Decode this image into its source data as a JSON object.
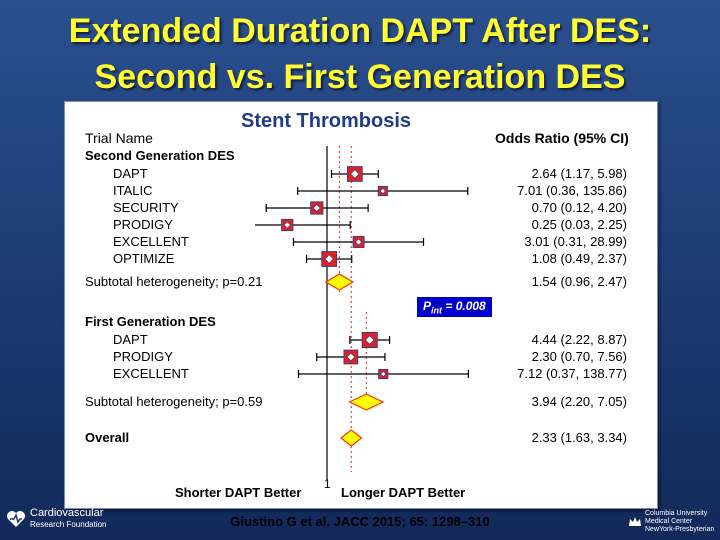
{
  "slide": {
    "title_line1": "Extended Duration DAPT After DES:",
    "title_line2": "Second vs. First Generation DES"
  },
  "panel": {
    "header_left": "Trial Name",
    "header_center": "Stent Thrombosis",
    "header_right": "Odds Ratio (95% CI)"
  },
  "chart_data": {
    "type": "forest",
    "xscale": "log",
    "reference_line": 1,
    "axis_tick_label": "1",
    "left_label": "Shorter DAPT Better",
    "right_label": "Longer DAPT Better",
    "p_interaction_prefix": "P",
    "p_interaction_sub": "int",
    "p_interaction_value": " = 0.008",
    "rows": [
      {
        "label": "Second Generation DES",
        "kind": "group"
      },
      {
        "label": "DAPT",
        "kind": "study",
        "or": 2.64,
        "lo": 1.17,
        "hi": 5.98,
        "text": "2.64 (1.17, 5.98)"
      },
      {
        "label": "ITALIC",
        "kind": "study",
        "or": 7.01,
        "lo": 0.36,
        "hi": 135.86,
        "text": "7.01 (0.36, 135.86)"
      },
      {
        "label": "SECURITY",
        "kind": "study",
        "or": 0.7,
        "lo": 0.12,
        "hi": 4.2,
        "text": "0.70 (0.12, 4.20)"
      },
      {
        "label": "PRODIGY",
        "kind": "study",
        "or": 0.25,
        "lo": 0.03,
        "hi": 2.25,
        "text": "0.25 (0.03, 2.25)"
      },
      {
        "label": "EXCELLENT",
        "kind": "study",
        "or": 3.01,
        "lo": 0.31,
        "hi": 28.99,
        "text": "3.01 (0.31, 28.99)"
      },
      {
        "label": "OPTIMIZE",
        "kind": "study",
        "or": 1.08,
        "lo": 0.49,
        "hi": 2.37,
        "text": "1.08 (0.49, 2.37)"
      },
      {
        "label": "Subtotal heterogeneity; p=0.21",
        "kind": "subtotal",
        "or": 1.54,
        "lo": 0.96,
        "hi": 2.47,
        "text": "1.54 (0.96, 2.47)"
      },
      {
        "label": "First Generation DES",
        "kind": "group"
      },
      {
        "label": "DAPT",
        "kind": "study",
        "or": 4.44,
        "lo": 2.22,
        "hi": 8.87,
        "text": "4.44 (2.22, 8.87)"
      },
      {
        "label": "PRODIGY",
        "kind": "study",
        "or": 2.3,
        "lo": 0.7,
        "hi": 7.56,
        "text": "2.30 (0.70, 7.56)"
      },
      {
        "label": "EXCELLENT",
        "kind": "study",
        "or": 7.12,
        "lo": 0.37,
        "hi": 138.77,
        "text": "7.12 (0.37, 138.77)"
      },
      {
        "label": "Subtotal heterogeneity; p=0.59",
        "kind": "subtotal",
        "or": 3.94,
        "lo": 2.2,
        "hi": 7.05,
        "text": "3.94 (2.20, 7.05)"
      },
      {
        "label": "Overall",
        "kind": "overall",
        "or": 2.33,
        "lo": 1.63,
        "hi": 3.34,
        "text": "2.33 (1.63, 3.34)"
      }
    ]
  },
  "footer": {
    "citation": "Giustino G et al. JACC 2015; 65: 1298–310",
    "logo_left_line1": "Cardiovascular",
    "logo_left_line2": "Research Foundation",
    "logo_right_line1": "Columbia University",
    "logo_right_line2": "Medical Center",
    "logo_right_line3": "NewYork-Presbyterian"
  },
  "colors": {
    "title": "#ffff33",
    "header_center": "#1f3b8a",
    "marker_fill": "#dd2222",
    "marker_border": "#1f3b8a",
    "diamond_fill": "#ffff00",
    "diamond_border": "#ff3300",
    "pint_bg": "#0000cc",
    "cell_bg": "#4a7bd6"
  }
}
